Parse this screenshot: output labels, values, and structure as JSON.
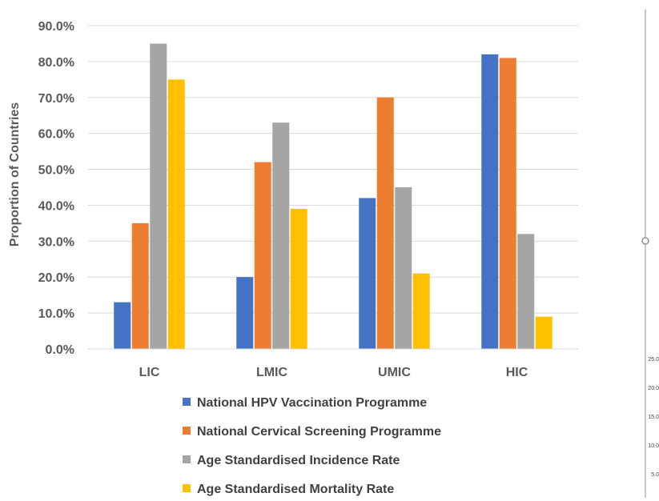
{
  "chart_data": {
    "type": "bar",
    "categories": [
      "LIC",
      "LMIC",
      "UMIC",
      "HIC"
    ],
    "series": [
      {
        "name": "National HPV Vaccination Programme",
        "color": "#4472C4",
        "values": [
          13,
          20,
          42,
          82
        ]
      },
      {
        "name": "National Cervical Screening Programme",
        "color": "#ED7D31",
        "values": [
          35,
          52,
          70,
          81
        ]
      },
      {
        "name": "Age Standardised Incidence Rate",
        "color": "#A5A5A5",
        "values": [
          85,
          63,
          45,
          32
        ]
      },
      {
        "name": "Age Standardised Mortality Rate",
        "color": "#FFC000",
        "values": [
          75,
          39,
          21,
          9
        ]
      }
    ],
    "ylabel": "Proportion of Countries",
    "ylim": [
      0,
      90
    ],
    "yticks": [
      "0.0%",
      "10.0%",
      "20.0%",
      "30.0%",
      "40.0%",
      "50.0%",
      "60.0%",
      "70.0%",
      "80.0%",
      "90.0%"
    ],
    "grid": true,
    "legend_position": "bottom"
  },
  "side_axis_ticks": [
    "25.0",
    "20.0",
    "15.0",
    "10.0",
    "5.0"
  ]
}
